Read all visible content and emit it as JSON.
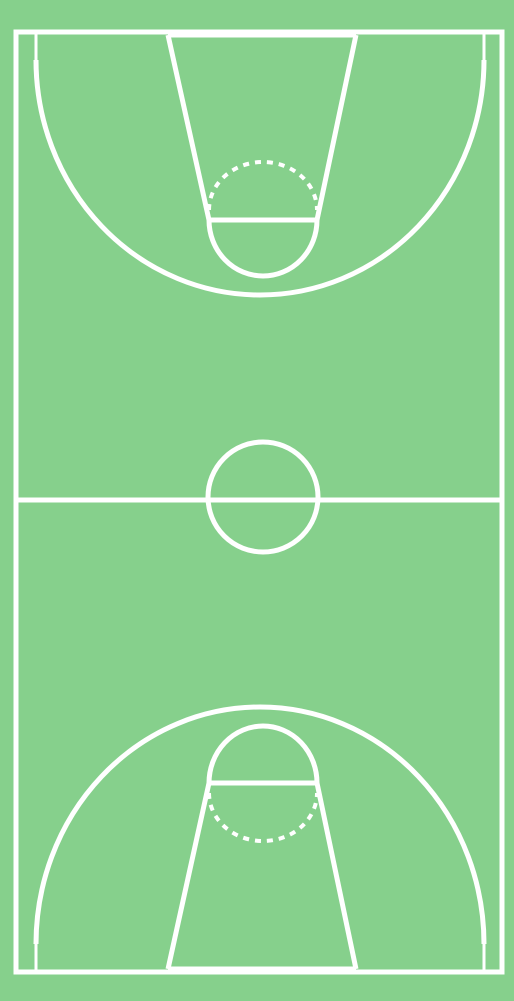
{
  "court": {
    "surface_color": "#86d08c",
    "line_color": "#ffffff",
    "watermark_text": ""
  }
}
